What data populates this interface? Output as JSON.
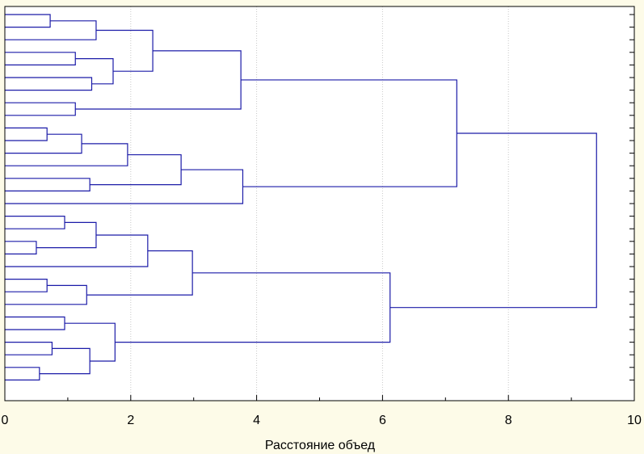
{
  "chart_data": {
    "type": "dendrogram",
    "orientation": "horizontal",
    "title": "",
    "xlabel": "Расстояние объед",
    "ylabel": "",
    "xlim": [
      0,
      10
    ],
    "xticks": [
      0,
      2,
      4,
      6,
      8,
      10
    ],
    "grid": true,
    "leaf_count": 30,
    "colors": {
      "branch": "#1b1ba8",
      "background": "#fdfbe8",
      "plot_background": "#ffffff",
      "grid": "#c8c8c8"
    },
    "merges": [
      {
        "a": 0,
        "b": 1,
        "height": 0.72
      },
      {
        "a": "L0",
        "b": 2,
        "height": 1.45
      },
      {
        "a": 3,
        "b": 4,
        "height": 1.12
      },
      {
        "a": 5,
        "b": 6,
        "height": 1.38
      },
      {
        "a": "L2",
        "b": "L3",
        "height": 1.72
      },
      {
        "a": "L1",
        "b": "L4",
        "height": 2.35
      },
      {
        "a": 7,
        "b": 8,
        "height": 1.12
      },
      {
        "a": "L5",
        "b": "L6",
        "height": 3.75
      },
      {
        "a": 9,
        "b": 10,
        "height": 0.67
      },
      {
        "a": "L8",
        "b": 11,
        "height": 1.22
      },
      {
        "a": "L9",
        "b": 12,
        "height": 1.95
      },
      {
        "a": 13,
        "b": 14,
        "height": 1.35
      },
      {
        "a": "L10",
        "b": "L11",
        "height": 2.8
      },
      {
        "a": "L12",
        "b": 15,
        "height": 3.78
      },
      {
        "a": "L7",
        "b": "L13",
        "height": 7.18
      },
      {
        "a": 16,
        "b": 17,
        "height": 0.95
      },
      {
        "a": 18,
        "b": 19,
        "height": 0.5
      },
      {
        "a": "L15",
        "b": "L16",
        "height": 1.45
      },
      {
        "a": "L17",
        "b": 20,
        "height": 2.27
      },
      {
        "a": 21,
        "b": 22,
        "height": 0.67
      },
      {
        "a": "L19",
        "b": 23,
        "height": 1.3
      },
      {
        "a": "L18",
        "b": "L20",
        "height": 2.98
      },
      {
        "a": 24,
        "b": 25,
        "height": 0.95
      },
      {
        "a": 26,
        "b": 27,
        "height": 0.75
      },
      {
        "a": 28,
        "b": 29,
        "height": 0.55
      },
      {
        "a": "L23",
        "b": "L24",
        "height": 1.35
      },
      {
        "a": "L22",
        "b": "L25",
        "height": 1.75
      },
      {
        "a": "L21",
        "b": "L26",
        "height": 6.12
      },
      {
        "a": "L14",
        "b": "L27",
        "height": 9.4
      }
    ]
  }
}
